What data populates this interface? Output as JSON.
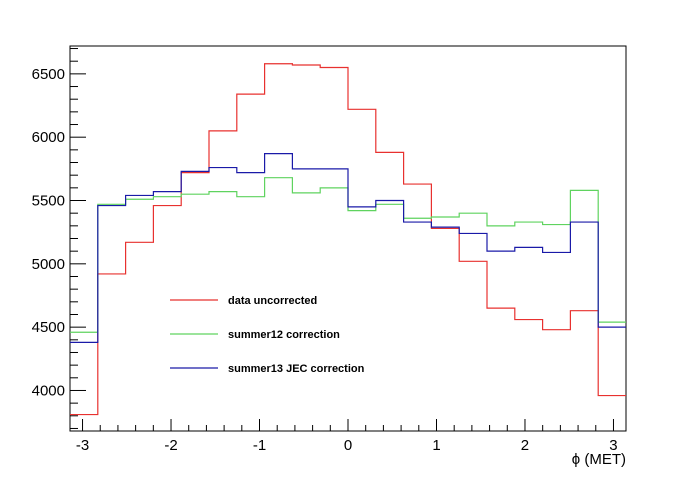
{
  "chart_data": {
    "type": "line",
    "style": "step-histogram",
    "title": "",
    "xlabel": "ϕ (MET)",
    "ylabel": "",
    "xlim": [
      -3.1416,
      3.1416
    ],
    "ylim": [
      3680,
      6720
    ],
    "x_ticks": [
      -3,
      -2,
      -1,
      0,
      1,
      2,
      3
    ],
    "y_ticks": [
      4000,
      4500,
      5000,
      5500,
      6000,
      6500
    ],
    "grid": false,
    "legend_position": "center-left",
    "bin_edges": [
      -3.1416,
      -2.8274,
      -2.5133,
      -2.1991,
      -1.885,
      -1.5708,
      -1.2566,
      -0.9425,
      -0.6283,
      -0.3142,
      0,
      0.3142,
      0.6283,
      0.9425,
      1.2566,
      1.5708,
      1.885,
      2.1991,
      2.5133,
      2.8274,
      3.1416
    ],
    "series": [
      {
        "name": "data uncorrected",
        "color": "#e8312f",
        "values": [
          3810,
          4920,
          5170,
          5460,
          5720,
          6050,
          6340,
          6580,
          6570,
          6550,
          6220,
          5880,
          5630,
          5280,
          5020,
          4650,
          4560,
          4480,
          4630,
          3960
        ]
      },
      {
        "name": "summer12 correction",
        "color": "#5fd35f",
        "values": [
          4460,
          5470,
          5510,
          5530,
          5550,
          5570,
          5530,
          5680,
          5560,
          5600,
          5420,
          5470,
          5360,
          5370,
          5400,
          5300,
          5330,
          5310,
          5580,
          4540
        ]
      },
      {
        "name": "summer13 JEC correction",
        "color": "#1a1aa8",
        "values": [
          4380,
          5460,
          5540,
          5570,
          5730,
          5760,
          5720,
          5870,
          5750,
          5750,
          5450,
          5500,
          5330,
          5290,
          5240,
          5100,
          5130,
          5090,
          5330,
          4500
        ]
      }
    ],
    "x_tick_labels": [
      "-3",
      "-2",
      "-1",
      "0",
      "1",
      "2",
      "3"
    ],
    "y_tick_labels": [
      "4000",
      "4500",
      "5000",
      "5500",
      "6000",
      "6500"
    ]
  }
}
